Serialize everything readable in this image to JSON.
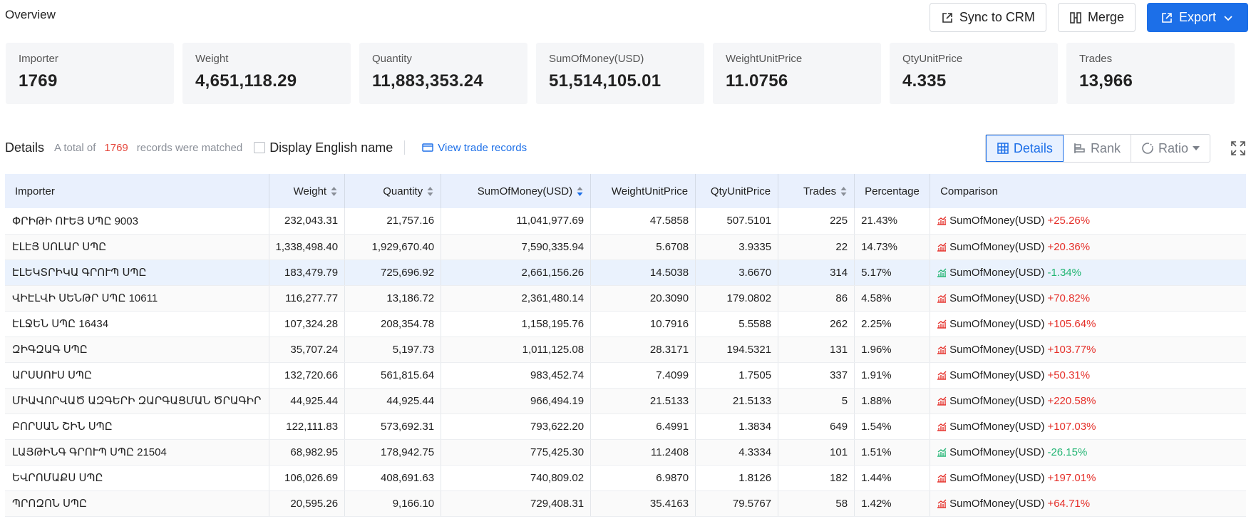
{
  "header": {
    "title": "Overview"
  },
  "actions": {
    "sync": "Sync to CRM",
    "merge": "Merge",
    "export": "Export"
  },
  "stats": [
    {
      "label": "Importer",
      "value": "1769"
    },
    {
      "label": "Weight",
      "value": "4,651,118.29"
    },
    {
      "label": "Quantity",
      "value": "11,883,353.24"
    },
    {
      "label": "SumOfMoney(USD)",
      "value": "51,514,105.01"
    },
    {
      "label": "WeightUnitPrice",
      "value": "11.0756"
    },
    {
      "label": "QtyUnitPrice",
      "value": "4.335"
    },
    {
      "label": "Trades",
      "value": "13,966"
    }
  ],
  "details": {
    "title": "Details",
    "prefix": "A total of",
    "count": "1769",
    "suffix": "records were matched",
    "english_label": "Display English name",
    "view_records": "View trade records",
    "views": {
      "details": "Details",
      "rank": "Rank",
      "ratio": "Ratio"
    }
  },
  "table": {
    "columns": [
      "Importer",
      "Weight",
      "Quantity",
      "SumOfMoney(USD)",
      "WeightUnitPrice",
      "QtyUnitPrice",
      "Trades",
      "Percentage",
      "Comparison"
    ],
    "comparison_metric": "SumOfMoney(USD)",
    "rows": [
      {
        "importer": "ՓՐԻԹԻ ՈՒԵՅ ՍՊԸ 9003",
        "weight": "232,043.31",
        "quantity": "21,757.16",
        "money": "11,041,977.69",
        "wup": "47.5858",
        "qup": "507.5101",
        "trades": "225",
        "pct": "21.43%",
        "change": "+25.26%",
        "dir": "up"
      },
      {
        "importer": "ԷԼԷՅ ՍՈԼԱՐ ՍՊԸ",
        "weight": "1,338,498.40",
        "quantity": "1,929,670.40",
        "money": "7,590,335.94",
        "wup": "5.6708",
        "qup": "3.9335",
        "trades": "22",
        "pct": "14.73%",
        "change": "+20.36%",
        "dir": "up"
      },
      {
        "importer": "ԷԼԵԿՏՐԻԿԱ ԳՐՈՒՊ ՍՊԸ",
        "weight": "183,479.79",
        "quantity": "725,696.92",
        "money": "2,661,156.26",
        "wup": "14.5038",
        "qup": "3.6670",
        "trades": "314",
        "pct": "5.17%",
        "change": "-1.34%",
        "dir": "down"
      },
      {
        "importer": "ՎԻԷԼՎԻ ՍԵՆԹՐ ՍՊԸ 10611",
        "weight": "116,277.77",
        "quantity": "13,186.72",
        "money": "2,361,480.14",
        "wup": "20.3090",
        "qup": "179.0802",
        "trades": "86",
        "pct": "4.58%",
        "change": "+70.82%",
        "dir": "up"
      },
      {
        "importer": "ԷԼՋԵՆ ՍՊԸ 16434",
        "weight": "107,324.28",
        "quantity": "208,354.78",
        "money": "1,158,195.76",
        "wup": "10.7916",
        "qup": "5.5588",
        "trades": "262",
        "pct": "2.25%",
        "change": "+105.64%",
        "dir": "up"
      },
      {
        "importer": "ԶԻԳԶԱԳ ՍՊԸ",
        "weight": "35,707.24",
        "quantity": "5,197.73",
        "money": "1,011,125.08",
        "wup": "28.3171",
        "qup": "194.5321",
        "trades": "131",
        "pct": "1.96%",
        "change": "+103.77%",
        "dir": "up"
      },
      {
        "importer": "ԱՐՍՍՈՒՍ ՍՊԸ",
        "weight": "132,720.66",
        "quantity": "561,815.64",
        "money": "983,452.74",
        "wup": "7.4099",
        "qup": "1.7505",
        "trades": "337",
        "pct": "1.91%",
        "change": "+50.31%",
        "dir": "up"
      },
      {
        "importer": "ՄԻԱՎՈՐՎԱԾ ԱԶԳԵՐԻ ԶԱՐԳԱՑՄԱՆ ԾՐԱԳԻՐ",
        "weight": "44,925.44",
        "quantity": "44,925.44",
        "money": "966,494.19",
        "wup": "21.5133",
        "qup": "21.5133",
        "trades": "5",
        "pct": "1.88%",
        "change": "+220.58%",
        "dir": "up"
      },
      {
        "importer": "ԲՈՐՍԱՆ ՇԻՆ ՍՊԸ",
        "weight": "122,111.83",
        "quantity": "573,692.31",
        "money": "793,622.20",
        "wup": "6.4991",
        "qup": "1.3834",
        "trades": "649",
        "pct": "1.54%",
        "change": "+107.03%",
        "dir": "up"
      },
      {
        "importer": "ԼԱՅԹԻՆԳ ԳՐՈՒՊ ՍՊԸ 21504",
        "weight": "68,982.95",
        "quantity": "178,942.75",
        "money": "775,425.30",
        "wup": "11.2408",
        "qup": "4.3334",
        "trades": "101",
        "pct": "1.51%",
        "change": "-26.15%",
        "dir": "down"
      },
      {
        "importer": "ԵՎՐՈՄԱՔՍ ՍՊԸ",
        "weight": "106,026.69",
        "quantity": "408,691.63",
        "money": "740,809.02",
        "wup": "6.9870",
        "qup": "1.8126",
        "trades": "182",
        "pct": "1.44%",
        "change": "+197.01%",
        "dir": "up"
      },
      {
        "importer": "ՊՐՈԶՈՆ ՍՊԸ",
        "weight": "20,595.26",
        "quantity": "9,166.10",
        "money": "729,408.31",
        "wup": "35.4163",
        "qup": "79.5767",
        "trades": "58",
        "pct": "1.42%",
        "change": "+64.71%",
        "dir": "up"
      }
    ]
  },
  "colors": {
    "accent": "#1c6fe8",
    "up": "#e5302a",
    "down": "#22b573",
    "count": "#e5463b"
  }
}
